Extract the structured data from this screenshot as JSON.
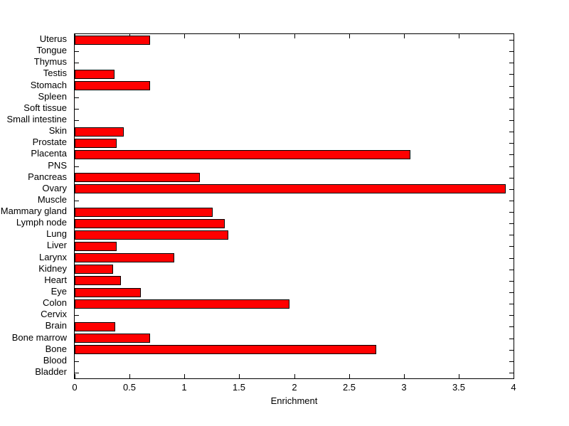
{
  "chart_data": {
    "type": "bar",
    "orientation": "horizontal",
    "title": "",
    "xlabel": "Enrichment",
    "ylabel": "",
    "xlim": [
      0,
      4
    ],
    "xticks": [
      0,
      0.5,
      1,
      1.5,
      2,
      2.5,
      3,
      3.5,
      4
    ],
    "xtick_labels": [
      "0",
      "0.5",
      "1",
      "1.5",
      "2",
      "2.5",
      "3",
      "3.5",
      "4"
    ],
    "grid": false,
    "legend": false,
    "bar_color": "#ff0000",
    "bar_edge_color": "#000000",
    "frame_color": "#000000",
    "background_color": "#ffffff",
    "categories_top_to_bottom": [
      "Uterus",
      "Tongue",
      "Thymus",
      "Testis",
      "Stomach",
      "Spleen",
      "Soft tissue",
      "Small intestine",
      "Skin",
      "Prostate",
      "Placenta",
      "PNS",
      "Pancreas",
      "Ovary",
      "Muscle",
      "Mammary gland",
      "Lymph node",
      "Lung",
      "Liver",
      "Larynx",
      "Kidney",
      "Heart",
      "Eye",
      "Colon",
      "Cervix",
      "Brain",
      "Bone marrow",
      "Bone",
      "Blood",
      "Bladder"
    ],
    "values_top_to_bottom": [
      0.69,
      0,
      0,
      0.36,
      0.69,
      0,
      0,
      0,
      0.45,
      0.38,
      3.06,
      0,
      1.14,
      3.93,
      0,
      1.26,
      1.37,
      1.4,
      0.38,
      0.91,
      0.35,
      0.42,
      0.6,
      1.96,
      0,
      0.37,
      0.69,
      2.75,
      0,
      0
    ]
  }
}
